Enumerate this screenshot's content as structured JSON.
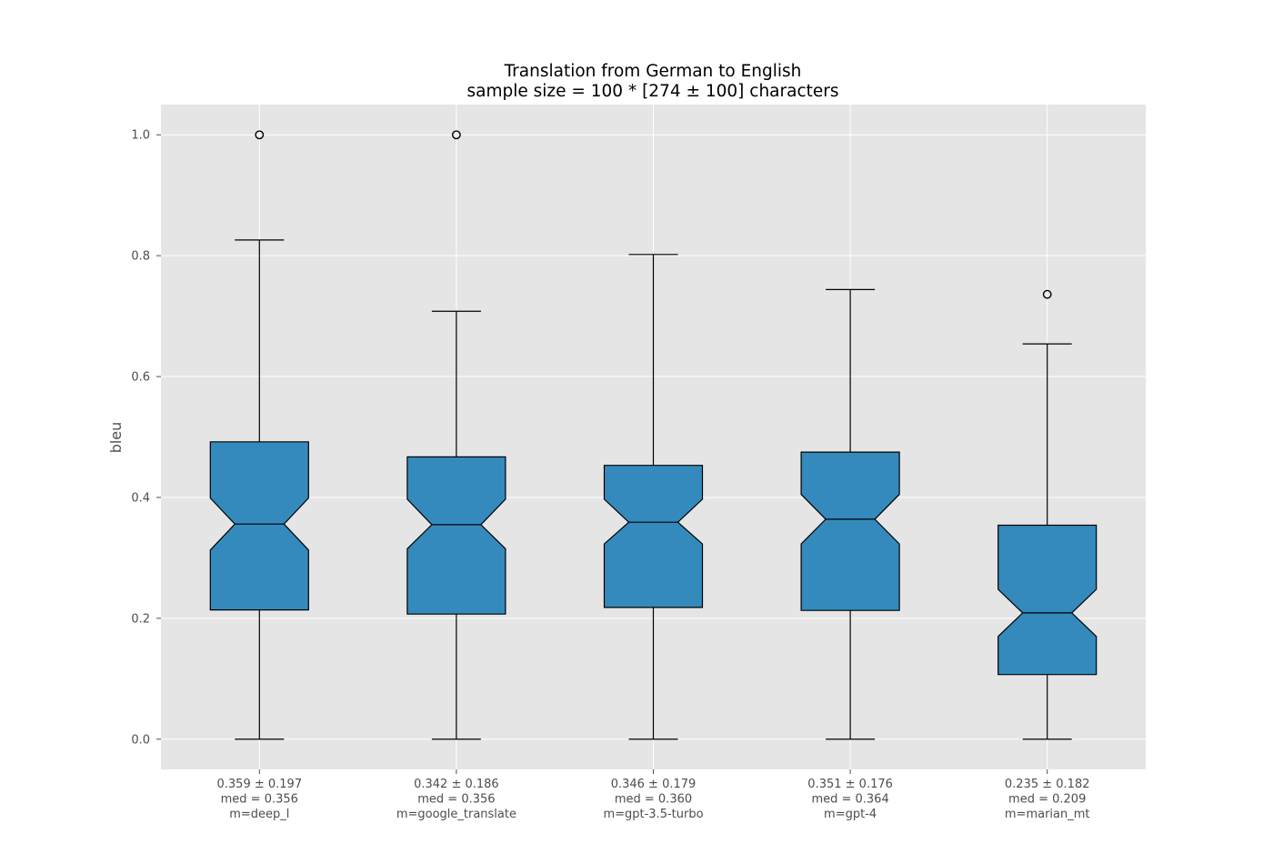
{
  "chart_data": {
    "type": "boxplot",
    "title_line1": "Translation from German to English",
    "title_line2": "sample size = 100 * [274 ± 100] characters",
    "ylabel": "bleu",
    "ylim": [
      -0.05,
      1.05
    ],
    "yticks": [
      0.0,
      0.2,
      0.4,
      0.6,
      0.8,
      1.0
    ],
    "ytick_labels": [
      "0.0",
      "0.2",
      "0.4",
      "0.6",
      "0.8",
      "1.0"
    ],
    "grid": true,
    "notched": true,
    "colors": {
      "background": "#e5e5e5",
      "box_fill": "#348abd",
      "grid": "#ffffff",
      "tick_text": "#4d4d4d"
    },
    "boxes": [
      {
        "label_lines": [
          "0.359 ± 0.197",
          "med = 0.356",
          "m=deep_l"
        ],
        "whisker_low": 0.0,
        "q1": 0.214,
        "median": 0.356,
        "q3": 0.492,
        "whisker_high": 0.826,
        "notch_low": 0.313,
        "notch_high": 0.399,
        "outliers": [
          1.0
        ]
      },
      {
        "label_lines": [
          "0.342 ± 0.186",
          "med = 0.356",
          "m=google_translate"
        ],
        "whisker_low": 0.0,
        "q1": 0.207,
        "median": 0.355,
        "q3": 0.467,
        "whisker_high": 0.708,
        "notch_low": 0.315,
        "notch_high": 0.397,
        "outliers": [
          1.0
        ]
      },
      {
        "label_lines": [
          "0.346 ± 0.179",
          "med = 0.360",
          "m=gpt-3.5-turbo"
        ],
        "whisker_low": 0.0,
        "q1": 0.218,
        "median": 0.359,
        "q3": 0.453,
        "whisker_high": 0.802,
        "notch_low": 0.323,
        "notch_high": 0.397,
        "outliers": []
      },
      {
        "label_lines": [
          "0.351 ± 0.176",
          "med = 0.364",
          "m=gpt-4"
        ],
        "whisker_low": 0.0,
        "q1": 0.213,
        "median": 0.364,
        "q3": 0.475,
        "whisker_high": 0.744,
        "notch_low": 0.323,
        "notch_high": 0.405,
        "outliers": []
      },
      {
        "label_lines": [
          "0.235 ± 0.182",
          "med = 0.209",
          "m=marian_mt"
        ],
        "whisker_low": 0.0,
        "q1": 0.107,
        "median": 0.209,
        "q3": 0.354,
        "whisker_high": 0.654,
        "notch_low": 0.17,
        "notch_high": 0.248,
        "outliers": [
          0.736
        ]
      }
    ]
  }
}
